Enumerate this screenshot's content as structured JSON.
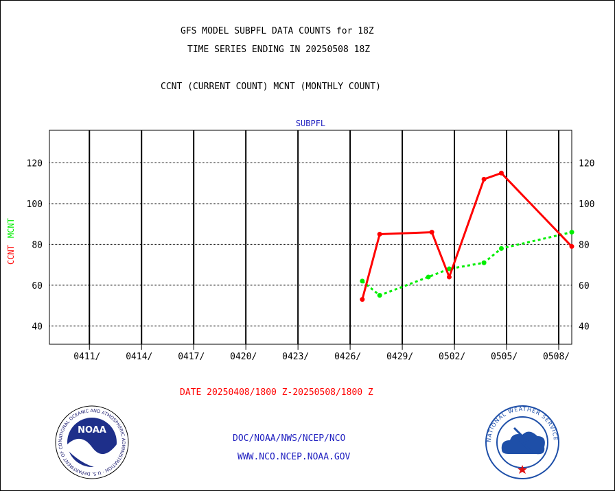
{
  "titles": {
    "line1": "GFS MODEL SUBPFL DATA COUNTS for 18Z",
    "line2": "TIME SERIES ENDING IN 20250508 18Z",
    "line3": "CCNT (CURRENT COUNT) MCNT (MONTHLY COUNT)"
  },
  "footer": {
    "date_range": "DATE 20250408/1800 Z-20250508/1800 Z",
    "org_path": "DOC/NOAA/NWS/NCEP/NCO",
    "website": "WWW.NCO.NCEP.NOAA.GOV"
  },
  "logos": {
    "noaa_text": "NOAA",
    "noaa_ring": "NATIONAL OCEANIC AND ATMOSPHERIC ADMINISTRATION · U.S. DEPARTMENT OF COMMERCE",
    "nws_ring": "NATIONAL WEATHER SERVICE"
  },
  "colors": {
    "ccnt": "#ff0000",
    "mcnt": "#00ee00",
    "plot_label": "#2020c0",
    "footer_date": "#ff0000",
    "footer_links": "#2020c0"
  },
  "chart_data": {
    "type": "line",
    "title": "SUBPFL",
    "ylabel_parts": [
      {
        "text": "CCNT",
        "series": "CCNT"
      },
      {
        "text": "MCNT",
        "series": "MCNT"
      }
    ],
    "xlabel": "DATE 20250408/1800 Z-20250508/1800 Z",
    "x_ticks": [
      "0411/",
      "0414/",
      "0417/",
      "0420/",
      "0423/",
      "0426/",
      "0429/",
      "0502/",
      "0505/",
      "0508/"
    ],
    "x_tick_days": [
      3,
      6,
      9,
      12,
      15,
      18,
      21,
      24,
      27,
      30
    ],
    "xlim_days": [
      0.7,
      30.75
    ],
    "ylim": [
      31,
      136
    ],
    "y_ticks": [
      40,
      60,
      80,
      100,
      120
    ],
    "grid": true,
    "series": [
      {
        "name": "CCNT",
        "color": "#ff0000",
        "style": "solid",
        "x_days": [
          18.7,
          19.7,
          22.7,
          23.7,
          25.7,
          26.7,
          30.75
        ],
        "values": [
          53,
          85,
          86,
          64,
          112,
          115,
          79
        ]
      },
      {
        "name": "MCNT",
        "color": "#00ee00",
        "style": "dotted",
        "x_days": [
          18.7,
          19.7,
          22.5,
          23.7,
          25.7,
          26.7,
          30.75
        ],
        "values": [
          62,
          55,
          64,
          68,
          71,
          78,
          86
        ]
      }
    ]
  }
}
